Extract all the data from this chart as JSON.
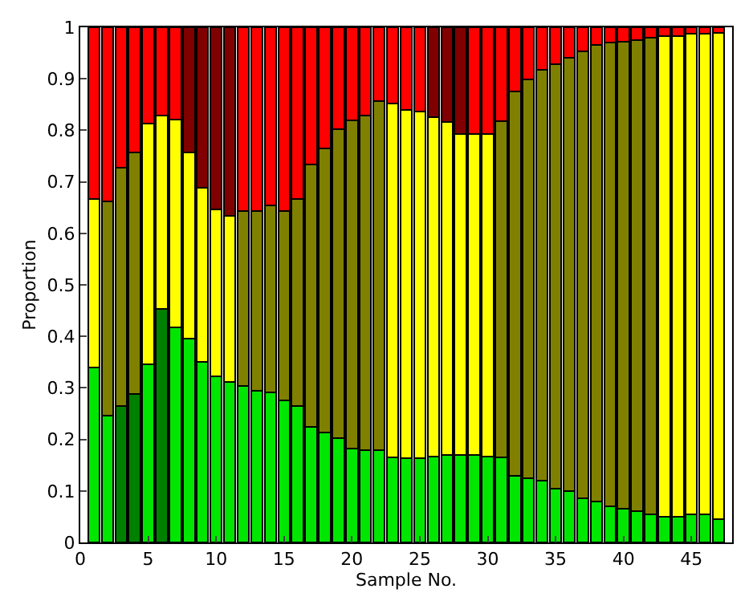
{
  "chart_data": {
    "type": "bar",
    "stacked": true,
    "xlabel": "Sample No.",
    "ylabel": "Proportion",
    "x": [
      1,
      2,
      3,
      4,
      5,
      6,
      7,
      8,
      9,
      10,
      11,
      12,
      13,
      14,
      15,
      16,
      17,
      18,
      19,
      20,
      21,
      22,
      23,
      24,
      25,
      26,
      27,
      28,
      29,
      30,
      31,
      32,
      33,
      34,
      35,
      36,
      37,
      38,
      39,
      40,
      41,
      42,
      43,
      44,
      45,
      46,
      47
    ],
    "xlim": [
      0,
      48
    ],
    "xticks": [
      0,
      5,
      10,
      15,
      20,
      25,
      30,
      35,
      40,
      45
    ],
    "ylim": [
      0,
      1
    ],
    "yticks": [
      0,
      0.1,
      0.2,
      0.3,
      0.4,
      0.5,
      0.6,
      0.7,
      0.8,
      0.9,
      1
    ],
    "grid": false,
    "series": [
      {
        "colors": [
          "#00e600",
          "#00e600",
          "#008000",
          "#008000",
          "#00e600",
          "#008000",
          "#00e600",
          "#00e600",
          "#00e600",
          "#00e600",
          "#00e600",
          "#00e600",
          "#00e600",
          "#00e600",
          "#00e600",
          "#00e600",
          "#00e600",
          "#00e600",
          "#00e600",
          "#00e600",
          "#00e600",
          "#00e600",
          "#00e600",
          "#00e600",
          "#00e600",
          "#00e600",
          "#00e600",
          "#00e600",
          "#00e600",
          "#00e600",
          "#00e600",
          "#00e600",
          "#00e600",
          "#00e600",
          "#00e600",
          "#00e600",
          "#00e600",
          "#00e600",
          "#00e600",
          "#00e600",
          "#00e600",
          "#00e600",
          "#00e600",
          "#00e600",
          "#00e600",
          "#00e600",
          "#00e600"
        ],
        "values": [
          0.34,
          0.246,
          0.265,
          0.288,
          0.346,
          0.453,
          0.417,
          0.395,
          0.351,
          0.323,
          0.311,
          0.303,
          0.295,
          0.292,
          0.276,
          0.265,
          0.225,
          0.214,
          0.203,
          0.183,
          0.179,
          0.179,
          0.165,
          0.163,
          0.163,
          0.166,
          0.17,
          0.17,
          0.17,
          0.167,
          0.165,
          0.13,
          0.125,
          0.12,
          0.105,
          0.1,
          0.085,
          0.08,
          0.07,
          0.065,
          0.06,
          0.055,
          0.05,
          0.05,
          0.055,
          0.055,
          0.045
        ]
      },
      {
        "colors": [
          "#ffff00",
          "#808000",
          "#808000",
          "#808000",
          "#ffff00",
          "#ffff00",
          "#ffff00",
          "#ffff00",
          "#ffff00",
          "#ffff00",
          "#ffff00",
          "#808000",
          "#808000",
          "#808000",
          "#808000",
          "#808000",
          "#808000",
          "#808000",
          "#808000",
          "#808000",
          "#808000",
          "#808000",
          "#ffff00",
          "#ffff00",
          "#ffff00",
          "#ffff00",
          "#ffff00",
          "#ffff00",
          "#ffff00",
          "#ffff00",
          "#808000",
          "#808000",
          "#808000",
          "#808000",
          "#808000",
          "#808000",
          "#808000",
          "#808000",
          "#808000",
          "#808000",
          "#808000",
          "#808000",
          "#ffff00",
          "#ffff00",
          "#ffff00",
          "#ffff00",
          "#ffff00"
        ],
        "values": [
          0.327,
          0.416,
          0.463,
          0.469,
          0.467,
          0.375,
          0.404,
          0.362,
          0.337,
          0.323,
          0.323,
          0.341,
          0.349,
          0.362,
          0.368,
          0.401,
          0.509,
          0.551,
          0.599,
          0.636,
          0.65,
          0.677,
          0.687,
          0.676,
          0.673,
          0.659,
          0.646,
          0.623,
          0.623,
          0.626,
          0.652,
          0.746,
          0.774,
          0.798,
          0.823,
          0.841,
          0.869,
          0.885,
          0.9,
          0.907,
          0.915,
          0.925,
          0.933,
          0.933,
          0.932,
          0.932,
          0.944
        ]
      },
      {
        "colors": [
          "#ff0000",
          "#ff0000",
          "#ff0000",
          "#ff0000",
          "#ff0000",
          "#ff0000",
          "#ff0000",
          "#800000",
          "#800000",
          "#800000",
          "#800000",
          "#ff0000",
          "#ff0000",
          "#ff0000",
          "#ff0000",
          "#ff0000",
          "#ff0000",
          "#ff0000",
          "#ff0000",
          "#ff0000",
          "#ff0000",
          "#ff0000",
          "#ff0000",
          "#ff0000",
          "#ff0000",
          "#800000",
          "#800000",
          "#800000",
          "#ff0000",
          "#ff0000",
          "#ff0000",
          "#ff0000",
          "#ff0000",
          "#ff0000",
          "#ff0000",
          "#ff0000",
          "#ff0000",
          "#ff0000",
          "#ff0000",
          "#ff0000",
          "#ff0000",
          "#ff0000",
          "#ff0000",
          "#ff0000",
          "#ff0000",
          "#ff0000",
          "#ff0000"
        ],
        "values": [
          0.333,
          0.338,
          0.272,
          0.243,
          0.187,
          0.172,
          0.179,
          0.243,
          0.312,
          0.354,
          0.366,
          0.356,
          0.356,
          0.346,
          0.356,
          0.334,
          0.266,
          0.235,
          0.198,
          0.181,
          0.171,
          0.144,
          0.148,
          0.161,
          0.164,
          0.175,
          0.184,
          0.207,
          0.207,
          0.207,
          0.183,
          0.124,
          0.101,
          0.082,
          0.072,
          0.059,
          0.046,
          0.035,
          0.03,
          0.028,
          0.025,
          0.02,
          0.017,
          0.017,
          0.013,
          0.013,
          0.011
        ]
      }
    ]
  }
}
